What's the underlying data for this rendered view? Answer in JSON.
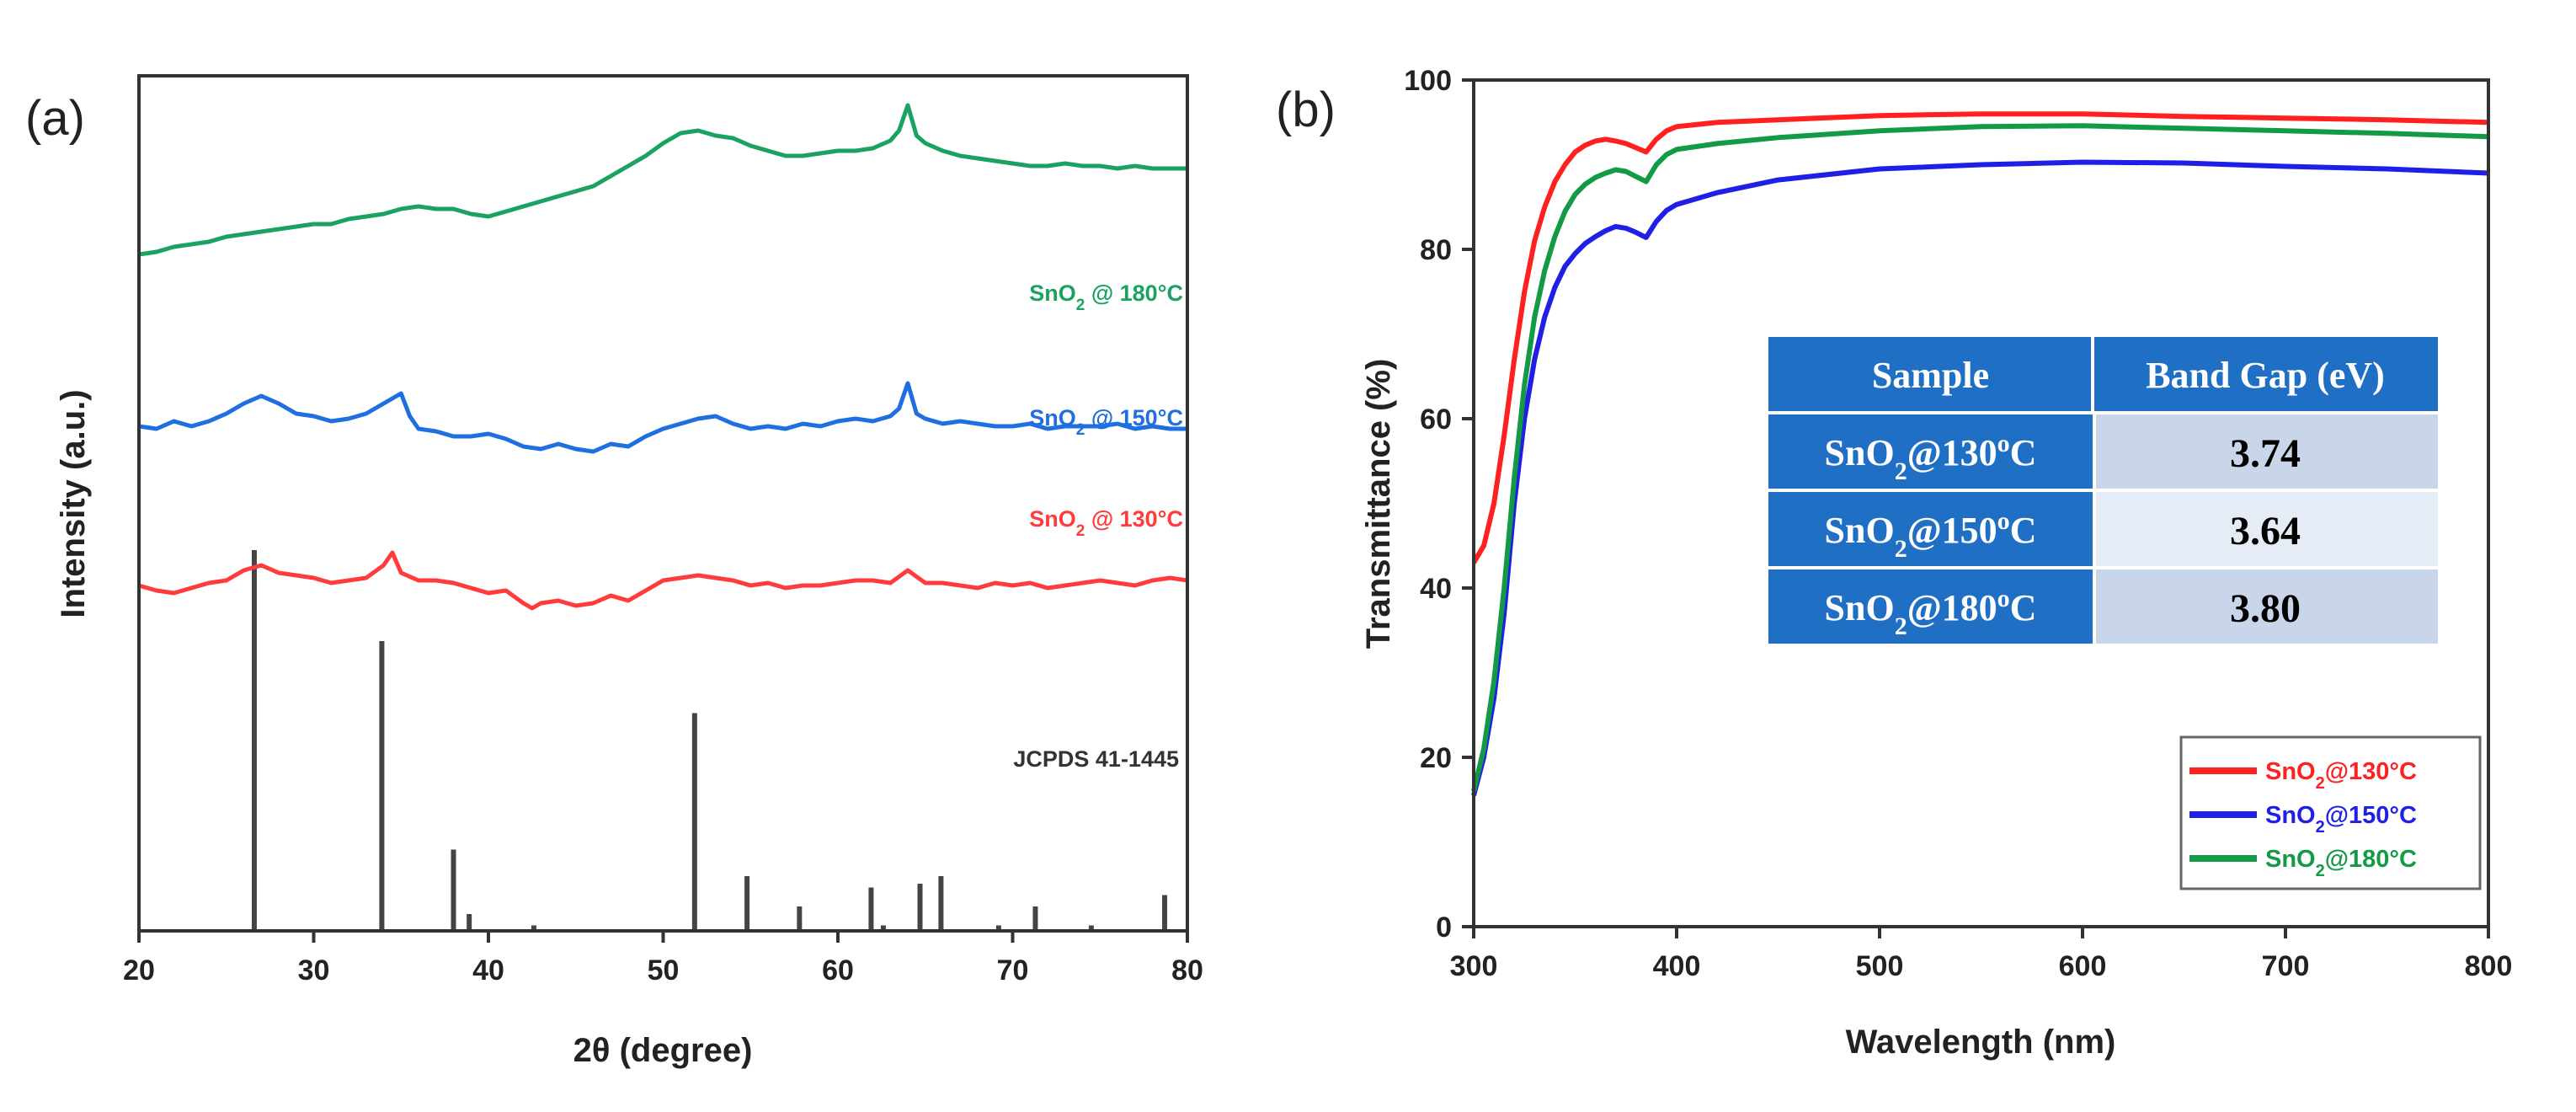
{
  "chart_data": [
    {
      "panel_label": "(a)",
      "type": "line",
      "title": "",
      "xlabel": "2θ (degree)",
      "ylabel": "Intensity (a.u.)",
      "xlim": [
        20,
        80
      ],
      "xticks": [
        "20",
        "30",
        "40",
        "50",
        "60",
        "70",
        "80"
      ],
      "y_ticks_shown": false,
      "grid": false,
      "series": [
        {
          "name": "SnO2 @ 130°C",
          "label_base": "SnO",
          "label_sub": "2",
          "label_rest": " @ 130°C",
          "color": "#ff3b3b",
          "stacked_offset": 0,
          "x": [
            20,
            21,
            22,
            23,
            24,
            25,
            26,
            27,
            28,
            29,
            30,
            31,
            32,
            33,
            34,
            34.5,
            35,
            36,
            37,
            38,
            39,
            40,
            41,
            42,
            42.5,
            43,
            44,
            45,
            46,
            47,
            48,
            49,
            50,
            51,
            52,
            53,
            54,
            55,
            56,
            57,
            58,
            59,
            60,
            61,
            62,
            63,
            64,
            65,
            66,
            67,
            68,
            69,
            70,
            71,
            72,
            73,
            74,
            75,
            76,
            77,
            78,
            79,
            80
          ],
          "y": [
            10,
            8,
            7,
            9,
            11,
            12,
            16,
            18,
            15,
            14,
            13,
            11,
            12,
            13,
            18,
            23,
            15,
            12,
            12,
            11,
            9,
            7,
            8,
            3,
            1,
            3,
            4,
            2,
            3,
            6,
            4,
            8,
            12,
            13,
            14,
            13,
            12,
            10,
            11,
            9,
            10,
            10,
            11,
            12,
            12,
            11,
            16,
            11,
            11,
            10,
            9,
            11,
            10,
            11,
            9,
            10,
            11,
            12,
            11,
            10,
            12,
            13,
            12
          ]
        },
        {
          "name": "SnO2 @ 150°C",
          "label_base": "SnO",
          "label_sub": "2",
          "label_rest": " @ 150°C",
          "color": "#1f6fe0",
          "stacked_offset": 60,
          "x": [
            20,
            21,
            22,
            23,
            24,
            25,
            26,
            27,
            28,
            29,
            30,
            31,
            32,
            33,
            34,
            35,
            35.5,
            36,
            37,
            38,
            39,
            40,
            41,
            42,
            43,
            44,
            45,
            46,
            47,
            48,
            49,
            50,
            51,
            52,
            53,
            54,
            55,
            56,
            57,
            58,
            59,
            60,
            61,
            62,
            63,
            63.5,
            64,
            64.5,
            65,
            66,
            67,
            68,
            69,
            70,
            71,
            72,
            73,
            74,
            75,
            76,
            77,
            78,
            79,
            80
          ],
          "y": [
            13,
            12,
            15,
            13,
            15,
            18,
            22,
            25,
            22,
            18,
            17,
            15,
            16,
            18,
            22,
            26,
            17,
            12,
            11,
            9,
            9,
            10,
            8,
            5,
            4,
            6,
            4,
            3,
            6,
            5,
            9,
            12,
            14,
            16,
            17,
            14,
            12,
            13,
            12,
            14,
            13,
            15,
            16,
            15,
            17,
            20,
            30,
            18,
            16,
            14,
            15,
            14,
            13,
            13,
            14,
            12,
            13,
            13,
            13,
            14,
            12,
            13,
            12,
            12
          ]
        },
        {
          "name": "SnO2 @ 180°C",
          "label_base": "SnO",
          "label_sub": "2",
          "label_rest": " @ 180°C",
          "color": "#1aa260",
          "stacked_offset": 130,
          "x": [
            20,
            21,
            22,
            23,
            24,
            25,
            26,
            27,
            28,
            29,
            30,
            31,
            32,
            33,
            34,
            35,
            36,
            37,
            38,
            39,
            40,
            41,
            42,
            43,
            44,
            45,
            46,
            47,
            48,
            49,
            50,
            51,
            52,
            53,
            54,
            55,
            56,
            57,
            58,
            59,
            60,
            61,
            62,
            63,
            63.5,
            64,
            64.5,
            65,
            66,
            67,
            68,
            69,
            70,
            71,
            72,
            73,
            74,
            75,
            76,
            77,
            78,
            79,
            80
          ],
          "y": [
            11,
            12,
            14,
            15,
            16,
            18,
            19,
            20,
            21,
            22,
            23,
            23,
            25,
            26,
            27,
            29,
            30,
            29,
            29,
            27,
            26,
            28,
            30,
            32,
            34,
            36,
            38,
            42,
            46,
            50,
            55,
            59,
            60,
            58,
            57,
            54,
            52,
            50,
            50,
            51,
            52,
            52,
            53,
            56,
            60,
            70,
            58,
            55,
            52,
            50,
            49,
            48,
            47,
            46,
            46,
            47,
            46,
            46,
            45,
            46,
            45,
            45,
            45
          ]
        }
      ],
      "reference": {
        "name": "JCPDS 41-1445",
        "type": "stick",
        "color": "#444444",
        "x": [
          26.6,
          33.9,
          38.0,
          38.9,
          42.6,
          51.8,
          54.8,
          57.8,
          61.9,
          62.6,
          64.7,
          65.9,
          69.2,
          71.3,
          74.5,
          78.7
        ],
        "y": [
          100,
          76,
          21,
          4,
          1,
          57,
          14,
          6,
          11,
          1,
          12,
          14,
          1,
          6,
          1,
          9
        ]
      }
    },
    {
      "panel_label": "(b)",
      "type": "line",
      "title": "",
      "xlabel": "Wavelength (nm)",
      "ylabel": "Transmittance (%)",
      "xlim": [
        300,
        800
      ],
      "ylim": [
        0,
        100
      ],
      "xticks": [
        "300",
        "400",
        "500",
        "600",
        "700",
        "800"
      ],
      "yticks": [
        "0",
        "20",
        "40",
        "60",
        "80",
        "100"
      ],
      "grid": false,
      "legend_position": "bottom-right",
      "series": [
        {
          "name": "SnO2@130°C",
          "label_base": "SnO",
          "label_sub": "2",
          "label_rest": "@130°C",
          "color": "#ff2020",
          "x": [
            300,
            305,
            310,
            315,
            320,
            325,
            330,
            335,
            340,
            345,
            350,
            355,
            360,
            365,
            370,
            375,
            380,
            385,
            390,
            395,
            400,
            420,
            450,
            500,
            550,
            600,
            650,
            700,
            750,
            800
          ],
          "y": [
            43,
            45,
            50,
            58,
            67,
            75,
            81,
            85,
            88,
            90,
            91.5,
            92.3,
            92.8,
            93,
            92.8,
            92.5,
            92,
            91.5,
            93,
            94,
            94.5,
            95,
            95.3,
            95.8,
            96,
            96,
            95.7,
            95.5,
            95.3,
            95
          ]
        },
        {
          "name": "SnO2@150°C",
          "label_base": "SnO",
          "label_sub": "2",
          "label_rest": "@150°C",
          "color": "#1f1fe6",
          "x": [
            300,
            305,
            310,
            315,
            320,
            325,
            330,
            335,
            340,
            345,
            350,
            355,
            360,
            365,
            370,
            375,
            380,
            385,
            390,
            395,
            400,
            420,
            450,
            500,
            550,
            600,
            650,
            700,
            750,
            800
          ],
          "y": [
            15.5,
            20,
            27,
            37,
            50,
            60,
            67,
            72,
            75.5,
            78,
            79.5,
            80.7,
            81.5,
            82.2,
            82.7,
            82.5,
            82,
            81.4,
            83.3,
            84.6,
            85.3,
            86.7,
            88.2,
            89.5,
            90,
            90.3,
            90.2,
            89.8,
            89.5,
            89
          ]
        },
        {
          "name": "SnO2@180°C",
          "label_base": "SnO",
          "label_sub": "2",
          "label_rest": "@180°C",
          "color": "#139a45",
          "x": [
            300,
            305,
            310,
            315,
            320,
            325,
            330,
            335,
            340,
            345,
            350,
            355,
            360,
            365,
            370,
            375,
            380,
            385,
            390,
            395,
            400,
            420,
            450,
            500,
            550,
            600,
            650,
            700,
            750,
            800
          ],
          "y": [
            16,
            21,
            29,
            40,
            53,
            64,
            72,
            77.5,
            81.5,
            84.5,
            86.5,
            87.7,
            88.5,
            89,
            89.4,
            89.2,
            88.6,
            88,
            90,
            91.2,
            91.8,
            92.5,
            93.2,
            94,
            94.5,
            94.6,
            94.3,
            94,
            93.7,
            93.3
          ]
        }
      ],
      "table": {
        "headers": [
          "Sample",
          "Band Gap (eV)"
        ],
        "rows": [
          {
            "sample_base": "SnO",
            "sample_sub": "2",
            "sample_mid": "@130",
            "sample_sup": "o",
            "sample_end": "C",
            "band_gap": "3.74"
          },
          {
            "sample_base": "SnO",
            "sample_sub": "2",
            "sample_mid": "@150",
            "sample_sup": "o",
            "sample_end": "C",
            "band_gap": "3.64"
          },
          {
            "sample_base": "SnO",
            "sample_sub": "2",
            "sample_mid": "@180",
            "sample_sup": "o",
            "sample_end": "C",
            "band_gap": "3.80"
          }
        ],
        "header_color": "#1f6fc5",
        "row_colors": [
          "#c9d6ea",
          "#e6ecf6",
          "#c9d6ea"
        ]
      }
    }
  ]
}
